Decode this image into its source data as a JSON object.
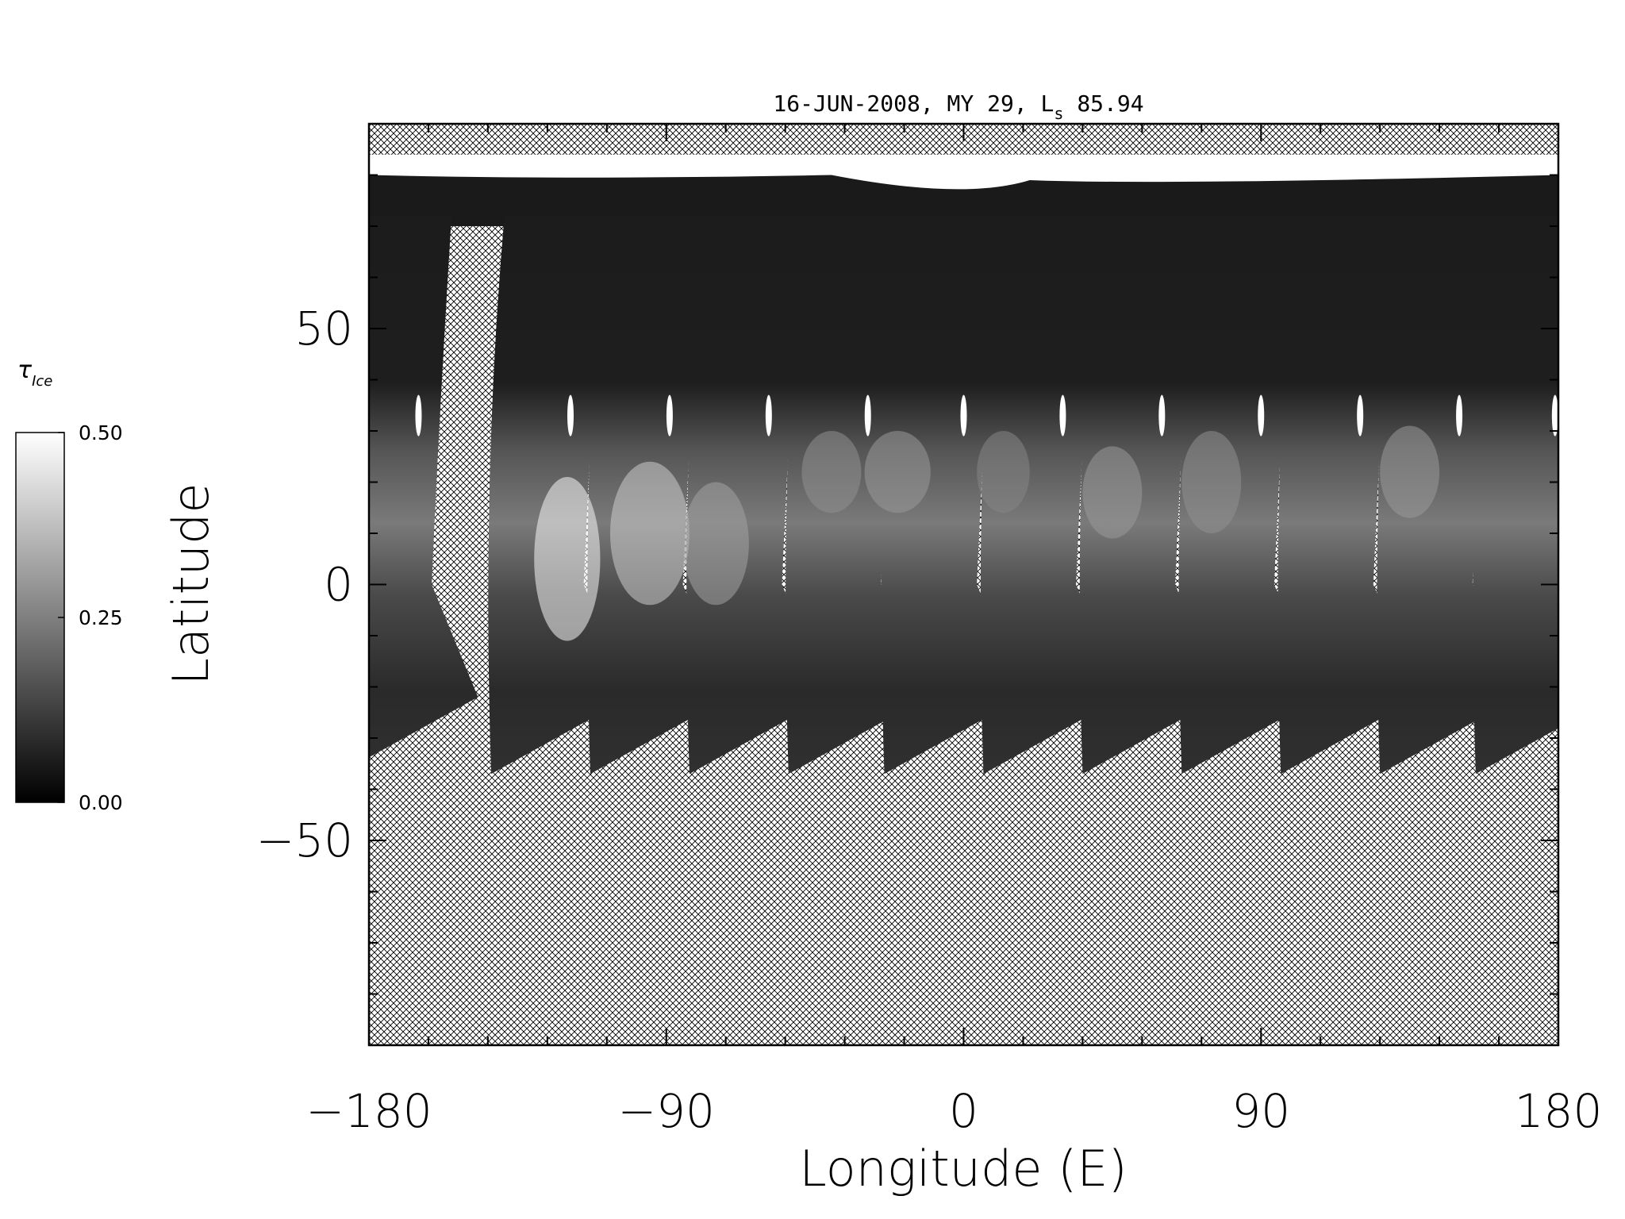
{
  "chart_data": {
    "type": "heatmap",
    "title": {
      "date": "16-JUN-2008",
      "mars_year": "MY 29",
      "ls_symbol": "L",
      "ls_subscript": "s",
      "ls_value": "85.94"
    },
    "xlabel": "Longitude (E)",
    "ylabel": "Latitude",
    "xlim": [
      -180,
      180
    ],
    "ylim": [
      -90,
      90
    ],
    "x_ticks": [
      "−180",
      "−90",
      "0",
      "90",
      "180"
    ],
    "x_tick_values": [
      -180,
      -90,
      0,
      90,
      180
    ],
    "y_ticks": [
      "50",
      "0",
      "−50"
    ],
    "y_tick_values": [
      50,
      0,
      -50
    ],
    "x_minor_step": 18,
    "y_minor_step": 10,
    "no_data_pattern": "cross-hatch",
    "colorbar": {
      "label_symbol": "τ",
      "label_subscript": "Ice",
      "min": 0.0,
      "max": 0.5,
      "ticks": [
        "0.50",
        "0.25",
        "0.00"
      ],
      "tick_values": [
        0.5,
        0.25,
        0.0
      ],
      "colormap": "grayscale"
    },
    "north_cap": {
      "lat_min": 75,
      "lat_max": 84,
      "value": 0.5
    },
    "swath_lat_range": [
      -37,
      84
    ],
    "swath_center_lons_at_equator": [
      -176,
      -130,
      -100,
      -70,
      -40,
      -11,
      19,
      49,
      79,
      109,
      139,
      168
    ],
    "swath_width_deg": 30,
    "ice_band": {
      "lat_center": 10,
      "lat_halfwidth": 25,
      "peak_value": 0.42
    }
  }
}
